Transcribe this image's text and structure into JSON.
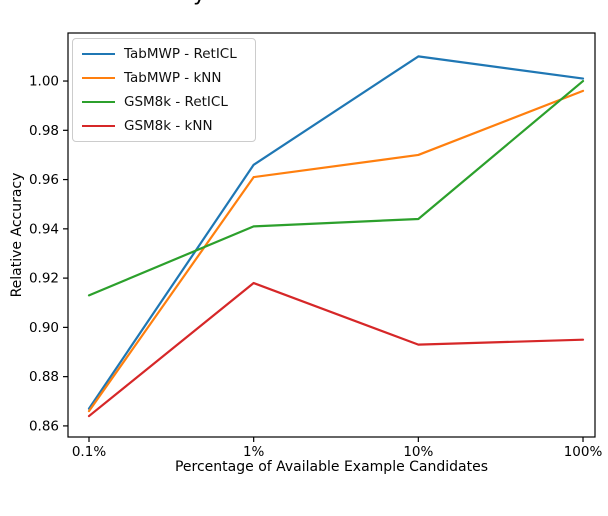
{
  "figure": {
    "clipped_title_fragment": "y",
    "background": "#ffffff",
    "spine_color": "#000000"
  },
  "chart_data": {
    "type": "line",
    "title": "",
    "xlabel": "Percentage of Available Example Candidates",
    "ylabel": "Relative Accuracy",
    "x_scale": "log",
    "grid": false,
    "legend_position": "upper left",
    "x_tick_labels": [
      "0.1%",
      "1%",
      "10%",
      "100%"
    ],
    "x_values_percent": [
      0.1,
      1,
      10,
      100
    ],
    "y_ticks": [
      0.86,
      0.88,
      0.9,
      0.92,
      0.94,
      0.96,
      0.98,
      1.0
    ],
    "ylim": [
      0.8555,
      1.0195
    ],
    "series": [
      {
        "name": "TabMWP - RetICL",
        "color": "#1f77b4",
        "values": [
          0.867,
          0.966,
          1.01,
          1.001
        ]
      },
      {
        "name": "TabMWP - kNN",
        "color": "#ff7f0e",
        "values": [
          0.866,
          0.961,
          0.97,
          0.996
        ]
      },
      {
        "name": "GSM8k - RetICL",
        "color": "#2ca02c",
        "values": [
          0.913,
          0.941,
          0.944,
          1.0
        ]
      },
      {
        "name": "GSM8k - kNN",
        "color": "#d62728",
        "values": [
          0.864,
          0.918,
          0.893,
          0.895
        ]
      }
    ]
  }
}
